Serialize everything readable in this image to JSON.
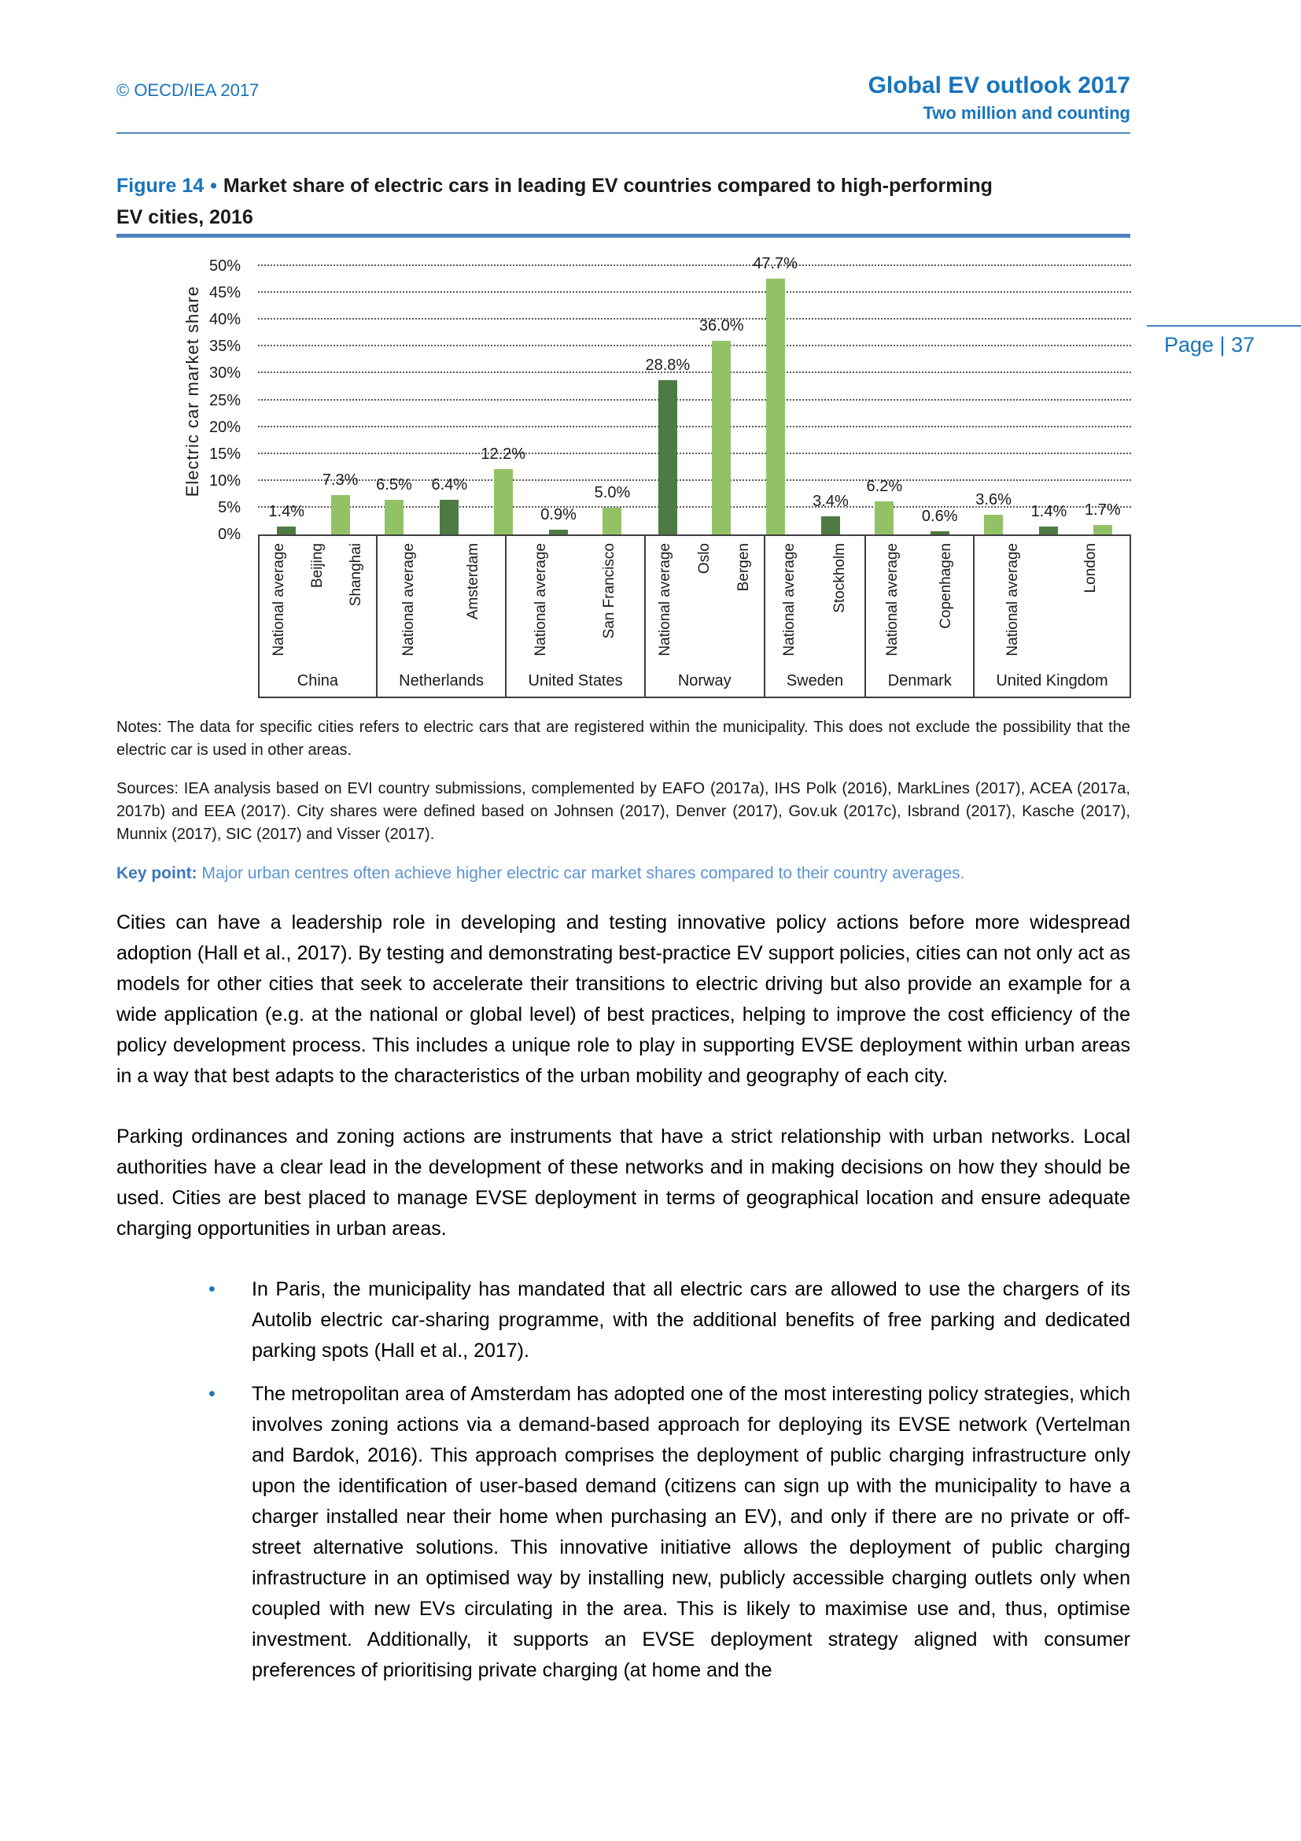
{
  "header": {
    "copyright": "© OECD/IEA 2017",
    "title": "Global EV outlook 2017",
    "subtitle": "Two million and counting"
  },
  "page_badge": "Page | 37",
  "figure": {
    "label": "Figure 14",
    "separator": "•",
    "title_line1": "Market share of electric cars in leading EV countries compared to high-performing",
    "title_line2": "EV cities, 2016"
  },
  "chart_data": {
    "type": "bar",
    "title": "Market share of electric cars in leading EV countries compared to high-performing EV cities, 2016",
    "ylabel": "Electric car market share",
    "ylim_pct": [
      0,
      50
    ],
    "ytick_values": [
      0,
      5,
      10,
      15,
      20,
      25,
      30,
      35,
      40,
      45,
      50
    ],
    "ytick_suffix": "%",
    "grid": "horizontal-dotted",
    "legend_position": "none",
    "colors": {
      "national_average": "#4e7b43",
      "city": "#93c266"
    },
    "groups": [
      {
        "country": "China",
        "bars": [
          {
            "label": "National average",
            "kind": "national_average",
            "value": 1.4
          },
          {
            "label": "Beijing",
            "kind": "city",
            "value": 7.3
          },
          {
            "label": "Shanghai",
            "kind": "city",
            "value": 6.5
          }
        ]
      },
      {
        "country": "Netherlands",
        "bars": [
          {
            "label": "National average",
            "kind": "national_average",
            "value": 6.4
          },
          {
            "label": "Amsterdam",
            "kind": "city",
            "value": 12.2
          }
        ]
      },
      {
        "country": "United States",
        "bars": [
          {
            "label": "National average",
            "kind": "national_average",
            "value": 0.9
          },
          {
            "label": "San Francisco",
            "kind": "city",
            "value": 5.0
          }
        ]
      },
      {
        "country": "Norway",
        "bars": [
          {
            "label": "National average",
            "kind": "national_average",
            "value": 28.8
          },
          {
            "label": "Oslo",
            "kind": "city",
            "value": 36.0
          },
          {
            "label": "Bergen",
            "kind": "city",
            "value": 47.7
          }
        ]
      },
      {
        "country": "Sweden",
        "bars": [
          {
            "label": "National average",
            "kind": "national_average",
            "value": 3.4
          },
          {
            "label": "Stockholm",
            "kind": "city",
            "value": 6.2
          }
        ]
      },
      {
        "country": "Denmark",
        "bars": [
          {
            "label": "National average",
            "kind": "national_average",
            "value": 0.6
          },
          {
            "label": "Copenhagen",
            "kind": "city",
            "value": 3.6
          }
        ]
      },
      {
        "country": "United Kingdom",
        "bars": [
          {
            "label": "National average",
            "kind": "national_average",
            "value": 1.4
          },
          {
            "label": "London",
            "kind": "city",
            "value": 1.7
          }
        ]
      }
    ]
  },
  "notes": "Notes: The data for specific cities refers to electric cars that are registered within the municipality. This does not exclude the possibility that the electric car is used in other areas.",
  "sources": "Sources: IEA analysis based on EVI country submissions, complemented by EAFO (2017a), IHS Polk (2016), MarkLines (2017), ACEA (2017a, 2017b) and EEA (2017). City shares were defined based on Johnsen (2017), Denver (2017), Gov.uk (2017c), Isbrand (2017), Kasche (2017), Munnix (2017), SIC (2017) and Visser (2017).",
  "key_point": {
    "label": "Key point:",
    "text": "Major urban centres often achieve higher electric car market shares compared to their country averages."
  },
  "paragraphs": [
    "Cities can have a leadership role in developing and testing innovative policy actions before more widespread adoption (Hall et al., 2017). By testing and demonstrating best-practice EV support policies, cities can not only act as models for other cities that seek to accelerate their transitions to electric driving but also provide an example for a wide application (e.g. at the national or global level) of best practices, helping to improve the cost efficiency of the policy development process. This includes a unique role to play in supporting EVSE deployment within urban areas in a way that best adapts to the characteristics of the urban mobility and geography of each city.",
    "Parking ordinances and zoning actions are instruments that have a strict relationship with urban networks. Local authorities have a clear lead in the development of these networks and in making decisions on how they should be used. Cities are best placed to manage EVSE deployment in terms of geographical location and ensure adequate charging opportunities in urban areas."
  ],
  "bullet_marker": "•",
  "bullets": [
    "In Paris, the municipality has mandated that all electric cars are allowed to use the chargers of its Autolib electric car-sharing programme, with the additional benefits of free parking and dedicated parking spots (Hall et al., 2017).",
    "The metropolitan area of Amsterdam has adopted one of the most interesting policy strategies, which involves zoning actions via a demand-based approach for deploying its EVSE network (Vertelman and Bardok, 2016). This approach comprises the deployment of public charging infrastructure only upon the identification of user-based demand (citizens can sign up with the municipality to have a charger installed near their home when purchasing an EV), and only if there are no private or off-street alternative solutions. This innovative initiative allows the deployment of public charging infrastructure in an optimised way by installing new, publicly accessible charging outlets only when coupled with new EVs circulating in the area. This is likely to maximise use and, thus, optimise investment. Additionally, it supports an EVSE deployment strategy aligned with consumer preferences of prioritising private charging (at home and the"
  ]
}
